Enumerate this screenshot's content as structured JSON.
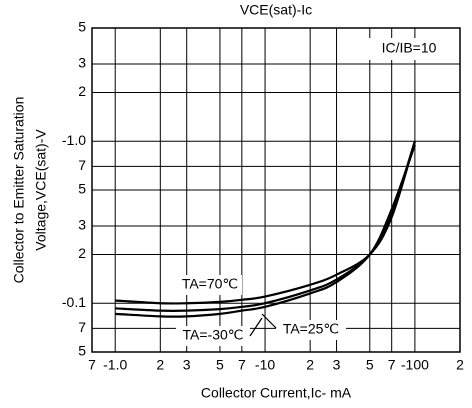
{
  "chart_data": {
    "type": "line",
    "title": "VCE(sat)-Ic",
    "x_label": "Collector Current,Ic- mA",
    "y_label": [
      "Collector to Emitter Saturation",
      "Voltage,VCE(sat)-V"
    ],
    "log_x": true,
    "log_y": true,
    "grid": true,
    "xlim": [
      0.7,
      200
    ],
    "ylim": [
      0.05,
      5
    ],
    "xticks": [
      {
        "value": 0.7,
        "label": "7"
      },
      {
        "value": 1,
        "label": "-1.0"
      },
      2,
      3,
      5,
      7,
      {
        "value": 10,
        "label": "-10"
      },
      {
        "value": 20,
        "label": "2"
      },
      {
        "value": 30,
        "label": "3"
      },
      {
        "value": 50,
        "label": "5"
      },
      {
        "value": 70,
        "label": "7"
      },
      {
        "value": 100,
        "label": "-100"
      },
      {
        "value": 200,
        "label": "2"
      }
    ],
    "yticks": [
      {
        "value": 0.05,
        "label": "5"
      },
      {
        "value": 0.07,
        "label": "7"
      },
      {
        "value": 0.1,
        "label": "-0.1"
      },
      {
        "value": 0.2,
        "label": "2"
      },
      {
        "value": 0.3,
        "label": "3"
      },
      {
        "value": 0.5,
        "label": "5"
      },
      {
        "value": 0.7,
        "label": "7"
      },
      {
        "value": 1,
        "label": "-1.0"
      },
      2,
      3,
      5
    ],
    "x": [
      1,
      2,
      3,
      5,
      7,
      10,
      20,
      30,
      50,
      70,
      100
    ],
    "series": [
      {
        "name": "TA=70℃",
        "color": "#000000",
        "values": [
          0.104,
          0.1,
          0.1,
          0.102,
          0.105,
          0.11,
          0.13,
          0.15,
          0.2,
          0.34,
          1.0
        ]
      },
      {
        "name": "TA=25℃",
        "color": "#000000",
        "values": [
          0.093,
          0.09,
          0.09,
          0.092,
          0.095,
          0.1,
          0.12,
          0.14,
          0.2,
          0.36,
          1.0
        ]
      },
      {
        "name": "TA=-30℃",
        "color": "#000000",
        "values": [
          0.086,
          0.083,
          0.083,
          0.086,
          0.09,
          0.095,
          0.115,
          0.135,
          0.2,
          0.38,
          0.95
        ]
      }
    ],
    "annotation": "IC/IB=10"
  }
}
